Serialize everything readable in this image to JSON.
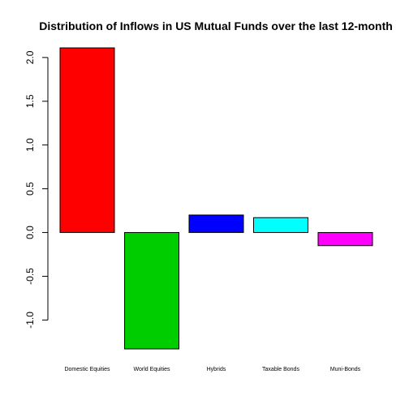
{
  "chart_data": {
    "type": "bar",
    "title": "Distribution of Inflows in US Mutual Funds  over the last 12-month",
    "xlabel": "",
    "ylabel": "",
    "categories": [
      "Domestic Equities",
      "World Equities",
      "Hybrids",
      "Taxable Bonds",
      "Muni-Bonds"
    ],
    "values": [
      2.11,
      -1.33,
      0.2,
      0.17,
      -0.15
    ],
    "colors": [
      "#ff0000",
      "#00cd00",
      "#0000ff",
      "#00ffff",
      "#ff00ff"
    ],
    "ylim": [
      -1.33,
      2.11
    ],
    "yticks": [
      -1.0,
      -0.5,
      0.0,
      0.5,
      1.0,
      1.5,
      2.0
    ],
    "ytick_labels": [
      "-1.0",
      "-0.5",
      "0.0",
      "0.5",
      "1.0",
      "1.5",
      "2.0"
    ],
    "grid": false,
    "legend": "none"
  }
}
